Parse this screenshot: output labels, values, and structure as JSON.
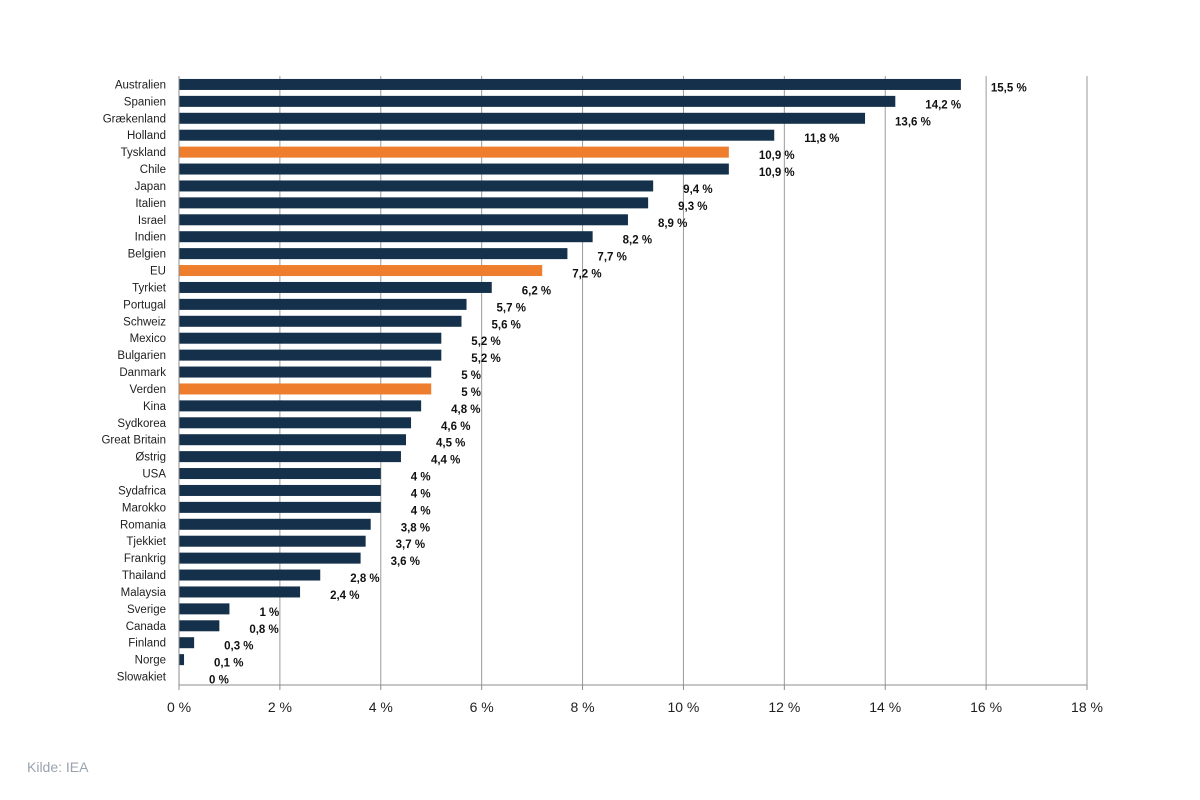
{
  "source_note": "Kilde: IEA",
  "colors": {
    "default_bar": "#14304a",
    "highlight_bar": "#ee7d2d",
    "grid": "#9a9a9a",
    "axis": "#8c8c8c"
  },
  "chart_data": {
    "type": "bar",
    "orientation": "horizontal",
    "title": "",
    "xlabel": "",
    "ylabel": "",
    "xlim": [
      0,
      18
    ],
    "x_ticks": [
      0,
      2,
      4,
      6,
      8,
      10,
      12,
      14,
      16,
      18
    ],
    "tick_suffix": " %",
    "grid": true,
    "highlighted": [
      "Tyskland",
      "EU",
      "Verden"
    ],
    "categories": [
      "Australien",
      "Spanien",
      "Grækenland",
      "Holland",
      "Tyskland",
      "Chile",
      "Japan",
      "Italien",
      "Israel",
      "Indien",
      "Belgien",
      "EU",
      "Tyrkiet",
      "Portugal",
      "Schweiz",
      "Mexico",
      "Bulgarien",
      "Danmark",
      "Verden",
      "Kina",
      "Sydkorea",
      "Great Britain",
      "Østrig",
      "USA",
      "Sydafrica",
      "Marokko",
      "Romania",
      "Tjekkiet",
      "Frankrig",
      "Thailand",
      "Malaysia",
      "Sverige",
      "Canada",
      "Finland",
      "Norge",
      "Slowakiet"
    ],
    "values": [
      15.5,
      14.2,
      13.6,
      11.8,
      10.9,
      10.9,
      9.4,
      9.3,
      8.9,
      8.2,
      7.7,
      7.2,
      6.2,
      5.7,
      5.6,
      5.2,
      5.2,
      5,
      5,
      4.8,
      4.6,
      4.5,
      4.4,
      4,
      4,
      4,
      3.8,
      3.7,
      3.6,
      2.8,
      2.4,
      1,
      0.8,
      0.3,
      0.1,
      0
    ],
    "value_labels": [
      "15,5 %",
      "14,2 %",
      "13,6 %",
      "11,8 %",
      "10,9 %",
      "10,9 %",
      "9,4 %",
      "9,3 %",
      "8,9 %",
      "8,2 %",
      "7,7 %",
      "7,2 %",
      "6,2 %",
      "5,7 %",
      "5,6 %",
      "5,2 %",
      "5,2 %",
      "5 %",
      "5 %",
      "4,8 %",
      "4,6 %",
      "4,5 %",
      "4,4 %",
      "4 %",
      "4 %",
      "4 %",
      "3,8 %",
      "3,7 %",
      "3,6 %",
      "2,8 %",
      "2,4 %",
      "1 %",
      "0,8 %",
      "0,3 %",
      "0,1 %",
      "0 %"
    ],
    "tick_labels": [
      "0 %",
      "2 %",
      "4 %",
      "6 %",
      "8 %",
      "10 %",
      "12 %",
      "14 %",
      "16 %",
      "18 %"
    ]
  }
}
